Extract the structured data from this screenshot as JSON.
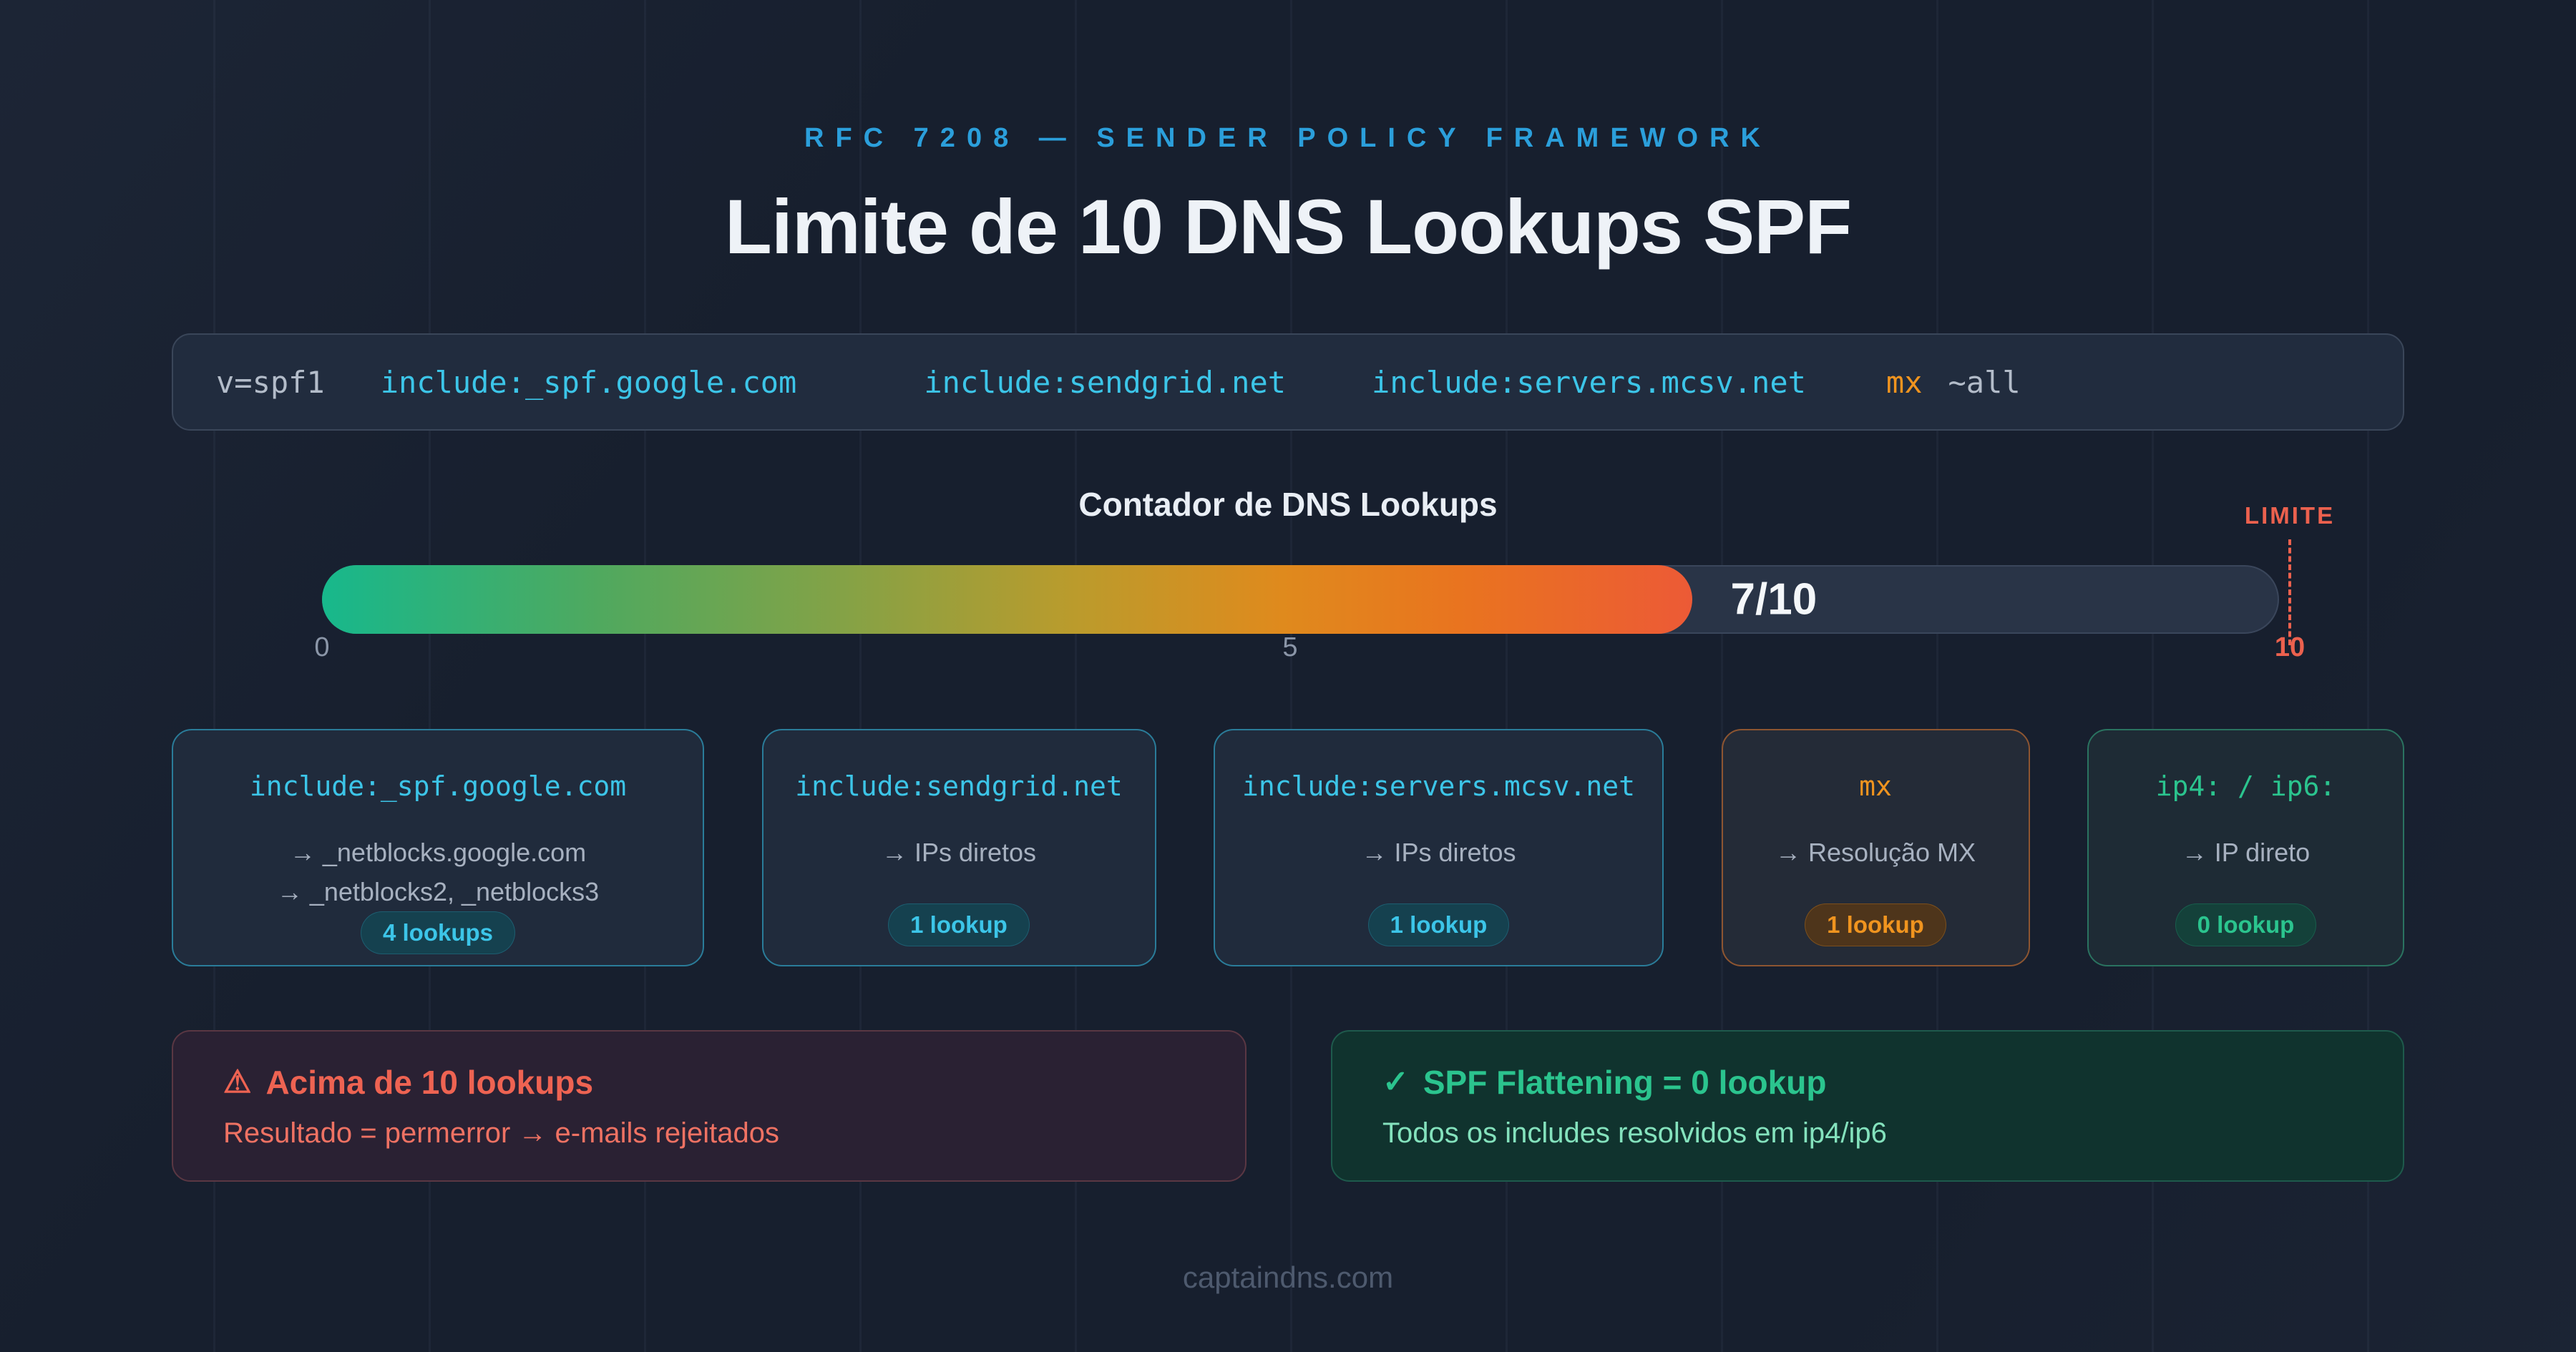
{
  "header": {
    "eyebrow": "RFC 7208 — SENDER POLICY FRAMEWORK",
    "title": "Limite de 10 DNS Lookups SPF"
  },
  "spf_record": {
    "tokens": [
      {
        "text": "v=spf1",
        "color": "gray"
      },
      {
        "text": "include:_spf.google.com",
        "color": "cyan"
      },
      {
        "text": "include:sendgrid.net",
        "color": "cyan"
      },
      {
        "text": "include:servers.mcsv.net",
        "color": "cyan"
      },
      {
        "text": "mx",
        "color": "orange"
      },
      {
        "text": "~all",
        "color": "gray"
      }
    ]
  },
  "counter": {
    "title": "Contador de DNS Lookups",
    "used": 7,
    "max": 10,
    "value_label": "7/10",
    "ticks": [
      "0",
      "5",
      "10"
    ],
    "limit_label": "LIMITE"
  },
  "cards": {
    "items": [
      {
        "title": "include:_spf.google.com",
        "lines": [
          "→ _netblocks.google.com",
          "→ _netblocks2, _netblocks3"
        ],
        "badge": "4 lookups",
        "accent": "cyan"
      },
      {
        "title": "include:sendgrid.net",
        "lines": [
          "→ IPs diretos"
        ],
        "badge": "1 lookup",
        "accent": "cyan"
      },
      {
        "title": "include:servers.mcsv.net",
        "lines": [
          "→ IPs diretos"
        ],
        "badge": "1 lookup",
        "accent": "cyan"
      },
      {
        "title": "mx",
        "lines": [
          "→ Resolução MX"
        ],
        "badge": "1 lookup",
        "accent": "orange"
      },
      {
        "title": "ip4: / ip6:",
        "lines": [
          "→ IP direto"
        ],
        "badge": "0 lookup",
        "accent": "green"
      }
    ]
  },
  "callouts": {
    "warning": {
      "icon": "⚠",
      "title": "Acima de 10 lookups",
      "subtitle": "Resultado = permerror → e-mails rejeitados"
    },
    "success": {
      "icon": "✓",
      "title": "SPF Flattening = 0 lookup",
      "subtitle": "Todos os includes resolvidos em ip4/ip6"
    }
  },
  "footer": {
    "text": "captaindns.com"
  },
  "palette": {
    "accent-blue": "#2b9fdb",
    "accent-cyan": "#3cc5e8",
    "accent-orange": "#f0941f",
    "accent-green": "#2bc48e",
    "accent-red": "#ec614e",
    "bg": "#171f2e"
  }
}
